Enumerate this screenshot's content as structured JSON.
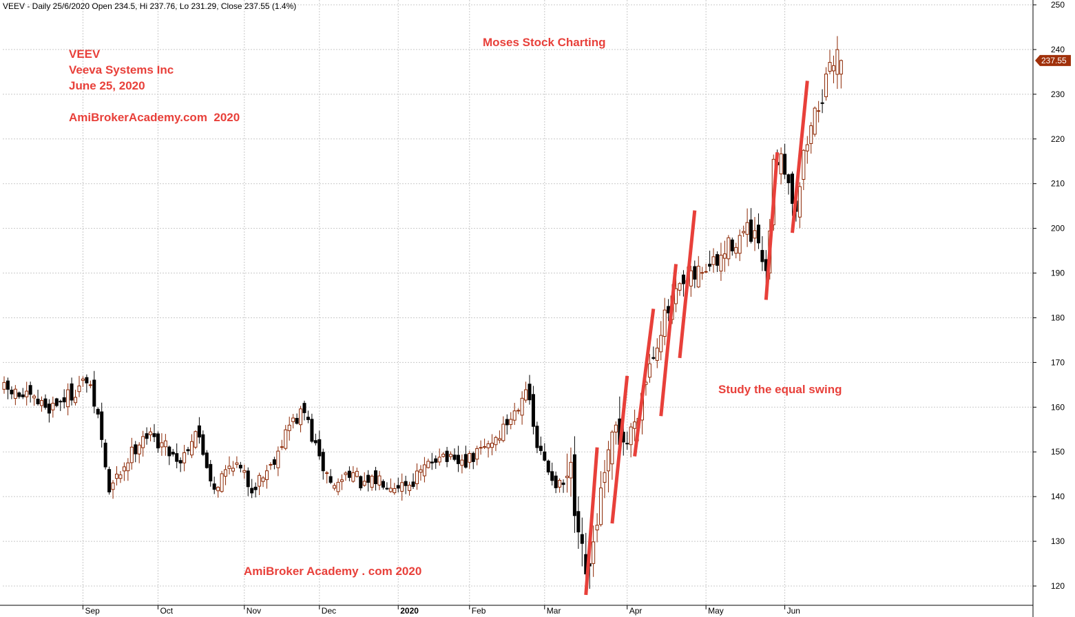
{
  "header": "VEEV - Daily 25/6/2020 Open 234.5, Hi 237.76, Lo 231.29, Close 237.55 (1.4%)",
  "annotations": {
    "ticker": "VEEV",
    "company": "Veeva Systems Inc",
    "date": "June 25, 2020",
    "site_top": "AmiBroker​Academy.com  2020",
    "center_top": "Moses Stock Charting",
    "swing_note": "Study the equal swing",
    "site_bottom": "AmiBroker Academy . com 2020"
  },
  "colors": {
    "up_candle": "#8B2500",
    "down_candle": "#000000",
    "annotation": "#E8403A",
    "swing_line": "#E8403A",
    "grid": "#c8c8c8",
    "price_tag": "#A0300A"
  },
  "chart_data": {
    "type": "candlestick",
    "interval": "daily",
    "ylim": [
      117,
      251
    ],
    "y_ticks": [
      120,
      130,
      140,
      150,
      160,
      170,
      180,
      190,
      200,
      210,
      220,
      230,
      240,
      250
    ],
    "x_ticks": [
      "Sep",
      "Oct",
      "Nov",
      "Dec",
      "2020",
      "Feb",
      "Mar",
      "Apr",
      "May",
      "Jun"
    ],
    "last_price_label": "237.55",
    "last_close": 237.55,
    "anchors": [
      [
        0,
        164
      ],
      [
        6,
        162
      ],
      [
        12,
        160
      ],
      [
        18,
        163
      ],
      [
        22,
        166
      ],
      [
        25,
        158
      ],
      [
        28,
        141
      ],
      [
        32,
        147
      ],
      [
        37,
        154
      ],
      [
        42,
        152
      ],
      [
        47,
        148
      ],
      [
        51,
        155
      ],
      [
        56,
        142
      ],
      [
        61,
        148
      ],
      [
        66,
        142
      ],
      [
        71,
        147
      ],
      [
        76,
        156
      ],
      [
        80,
        159
      ],
      [
        84,
        148
      ],
      [
        88,
        142
      ],
      [
        92,
        146
      ],
      [
        96,
        142
      ],
      [
        100,
        144
      ],
      [
        104,
        143
      ],
      [
        108,
        143
      ],
      [
        112,
        146
      ],
      [
        116,
        150
      ],
      [
        120,
        147
      ],
      [
        124,
        148
      ],
      [
        128,
        151
      ],
      [
        132,
        154
      ],
      [
        136,
        159
      ],
      [
        139,
        165
      ],
      [
        140,
        160
      ],
      [
        142,
        151
      ],
      [
        145,
        146
      ],
      [
        148,
        142
      ],
      [
        151,
        144
      ],
      [
        153,
        128
      ],
      [
        156,
        121
      ],
      [
        158,
        136
      ],
      [
        160,
        143
      ],
      [
        163,
        155
      ],
      [
        166,
        152
      ],
      [
        169,
        160
      ],
      [
        172,
        170
      ],
      [
        175,
        178
      ],
      [
        178,
        183
      ],
      [
        180,
        186
      ],
      [
        183,
        188
      ],
      [
        186,
        191
      ],
      [
        190,
        192
      ],
      [
        194,
        197
      ],
      [
        198,
        199
      ],
      [
        201,
        196
      ],
      [
        203,
        188
      ],
      [
        205,
        213
      ],
      [
        207,
        218
      ],
      [
        209,
        210
      ],
      [
        211,
        205
      ],
      [
        213,
        216
      ],
      [
        215,
        223
      ],
      [
        217,
        228
      ],
      [
        219,
        232
      ],
      [
        221,
        238
      ],
      [
        222,
        240
      ],
      [
        223,
        237.55
      ]
    ],
    "swing_lines": [
      {
        "start_day": 155,
        "start_price": 118,
        "end_day": 158,
        "end_price": 151
      },
      {
        "start_day": 162,
        "start_price": 134,
        "end_day": 166,
        "end_price": 167
      },
      {
        "start_day": 168,
        "start_price": 149,
        "end_day": 173,
        "end_price": 182
      },
      {
        "start_day": 175,
        "start_price": 158,
        "end_day": 179,
        "end_price": 192
      },
      {
        "start_day": 180,
        "start_price": 171,
        "end_day": 184,
        "end_price": 204
      },
      {
        "start_day": 203,
        "start_price": 184,
        "end_day": 206,
        "end_price": 217
      },
      {
        "start_day": 210,
        "start_price": 199,
        "end_day": 214,
        "end_price": 233
      }
    ]
  }
}
